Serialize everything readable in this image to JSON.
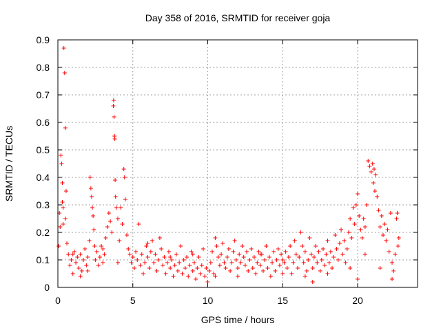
{
  "chart_data": {
    "type": "scatter",
    "title": "Day 358 of 2016, SRMTID for receiver goja",
    "xlabel": "GPS time / hours",
    "ylabel": "SRMTID / TECUs",
    "xlim": [
      0,
      24
    ],
    "ylim": [
      0,
      0.9
    ],
    "xticks": [
      0,
      5,
      10,
      15,
      20
    ],
    "xtick_labels": [
      "0",
      "5",
      "10",
      "15",
      "20"
    ],
    "yticks": [
      0,
      0.1,
      0.2,
      0.3,
      0.4,
      0.5,
      0.6,
      0.7,
      0.8,
      0.9
    ],
    "ytick_labels": [
      "0",
      "0.1",
      "0.2",
      "0.3",
      "0.4",
      "0.5",
      "0.6",
      "0.7",
      "0.8",
      "0.9"
    ],
    "grid": true,
    "marker": "plus",
    "color": "#ff0000",
    "series": [
      {
        "name": "SRMTID",
        "points": [
          [
            0.05,
            0.15
          ],
          [
            0.1,
            0.27
          ],
          [
            0.15,
            0.22
          ],
          [
            0.2,
            0.48
          ],
          [
            0.25,
            0.45
          ],
          [
            0.3,
            0.38
          ],
          [
            0.35,
            0.23
          ],
          [
            0.4,
            0.87
          ],
          [
            0.45,
            0.78
          ],
          [
            0.5,
            0.58
          ],
          [
            0.55,
            0.35
          ],
          [
            0.6,
            0.16
          ],
          [
            0.3,
            0.31
          ],
          [
            0.35,
            0.29
          ],
          [
            0.5,
            0.25
          ],
          [
            0.7,
            0.12
          ],
          [
            0.8,
            0.08
          ],
          [
            0.9,
            0.1
          ],
          [
            1.0,
            0.05
          ],
          [
            1.1,
            0.13
          ],
          [
            1.2,
            0.09
          ],
          [
            1.3,
            0.11
          ],
          [
            1.4,
            0.07
          ],
          [
            1.5,
            0.12
          ],
          [
            1.6,
            0.06
          ],
          [
            1.7,
            0.1
          ],
          [
            1.8,
            0.14
          ],
          [
            1.9,
            0.08
          ],
          [
            2.0,
            0.11
          ],
          [
            2.1,
            0.17
          ],
          [
            2.15,
            0.4
          ],
          [
            2.2,
            0.36
          ],
          [
            2.25,
            0.33
          ],
          [
            2.3,
            0.29
          ],
          [
            2.35,
            0.26
          ],
          [
            2.4,
            0.21
          ],
          [
            2.45,
            0.15
          ],
          [
            2.5,
            0.1
          ],
          [
            2.6,
            0.13
          ],
          [
            2.7,
            0.08
          ],
          [
            2.8,
            0.11
          ],
          [
            2.9,
            0.15
          ],
          [
            3.0,
            0.09
          ],
          [
            3.1,
            0.12
          ],
          [
            3.2,
            0.18
          ],
          [
            3.3,
            0.22
          ],
          [
            3.4,
            0.27
          ],
          [
            3.5,
            0.24
          ],
          [
            3.6,
            0.2
          ],
          [
            3.7,
            0.66
          ],
          [
            3.72,
            0.68
          ],
          [
            3.75,
            0.62
          ],
          [
            3.78,
            0.55
          ],
          [
            3.8,
            0.54
          ],
          [
            3.82,
            0.39
          ],
          [
            3.85,
            0.33
          ],
          [
            3.9,
            0.29
          ],
          [
            4.0,
            0.25
          ],
          [
            4.1,
            0.17
          ],
          [
            4.2,
            0.29
          ],
          [
            4.3,
            0.23
          ],
          [
            4.4,
            0.43
          ],
          [
            4.45,
            0.4
          ],
          [
            4.5,
            0.32
          ],
          [
            4.6,
            0.19
          ],
          [
            4.7,
            0.14
          ],
          [
            4.8,
            0.12
          ],
          [
            4.9,
            0.09
          ],
          [
            5.0,
            0.11
          ],
          [
            5.1,
            0.07
          ],
          [
            5.2,
            0.13
          ],
          [
            5.3,
            0.1
          ],
          [
            5.4,
            0.23
          ],
          [
            5.5,
            0.08
          ],
          [
            5.6,
            0.12
          ],
          [
            5.7,
            0.05
          ],
          [
            5.8,
            0.09
          ],
          [
            5.9,
            0.15
          ],
          [
            6.0,
            0.11
          ],
          [
            6.1,
            0.07
          ],
          [
            6.2,
            0.13
          ],
          [
            6.3,
            0.17
          ],
          [
            6.4,
            0.09
          ],
          [
            6.5,
            0.12
          ],
          [
            6.6,
            0.06
          ],
          [
            6.7,
            0.1
          ],
          [
            6.8,
            0.18
          ],
          [
            6.9,
            0.14
          ],
          [
            7.0,
            0.08
          ],
          [
            7.1,
            0.11
          ],
          [
            7.2,
            0.05
          ],
          [
            7.3,
            0.09
          ],
          [
            7.4,
            0.13
          ],
          [
            7.5,
            0.07
          ],
          [
            7.6,
            0.1
          ],
          [
            7.7,
            0.04
          ],
          [
            7.8,
            0.08
          ],
          [
            7.9,
            0.12
          ],
          [
            8.0,
            0.06
          ],
          [
            8.1,
            0.09
          ],
          [
            8.2,
            0.15
          ],
          [
            8.3,
            0.05
          ],
          [
            8.4,
            0.1
          ],
          [
            8.5,
            0.07
          ],
          [
            8.6,
            0.11
          ],
          [
            8.7,
            0.04
          ],
          [
            8.8,
            0.08
          ],
          [
            8.9,
            0.13
          ],
          [
            9.0,
            0.06
          ],
          [
            9.1,
            0.09
          ],
          [
            9.2,
            0.03
          ],
          [
            9.3,
            0.07
          ],
          [
            9.4,
            0.11
          ],
          [
            9.5,
            0.05
          ],
          [
            9.6,
            0.08
          ],
          [
            9.7,
            0.14
          ],
          [
            9.8,
            0.04
          ],
          [
            9.9,
            0.07
          ],
          [
            10.0,
            0.02
          ],
          [
            10.1,
            0.06
          ],
          [
            10.2,
            0.09
          ],
          [
            10.3,
            0.13
          ],
          [
            10.4,
            0.05
          ],
          [
            10.5,
            0.18
          ],
          [
            10.6,
            0.15
          ],
          [
            10.7,
            0.11
          ],
          [
            10.8,
            0.08
          ],
          [
            10.9,
            0.12
          ],
          [
            11.0,
            0.16
          ],
          [
            11.1,
            0.09
          ],
          [
            11.2,
            0.07
          ],
          [
            11.3,
            0.11
          ],
          [
            11.4,
            0.14
          ],
          [
            11.5,
            0.06
          ],
          [
            11.6,
            0.09
          ],
          [
            11.7,
            0.13
          ],
          [
            11.8,
            0.17
          ],
          [
            11.9,
            0.1
          ],
          [
            12.0,
            0.07
          ],
          [
            12.1,
            0.12
          ],
          [
            12.2,
            0.09
          ],
          [
            12.3,
            0.15
          ],
          [
            12.4,
            0.11
          ],
          [
            12.5,
            0.08
          ],
          [
            12.6,
            0.13
          ],
          [
            12.7,
            0.06
          ],
          [
            12.8,
            0.1
          ],
          [
            12.9,
            0.14
          ],
          [
            13.0,
            0.07
          ],
          [
            13.1,
            0.11
          ],
          [
            13.2,
            0.05
          ],
          [
            13.3,
            0.09
          ],
          [
            13.4,
            0.13
          ],
          [
            13.5,
            0.08
          ],
          [
            13.6,
            0.12
          ],
          [
            13.7,
            0.06
          ],
          [
            13.8,
            0.1
          ],
          [
            13.9,
            0.15
          ],
          [
            14.0,
            0.07
          ],
          [
            14.1,
            0.11
          ],
          [
            14.2,
            0.04
          ],
          [
            14.3,
            0.09
          ],
          [
            14.4,
            0.13
          ],
          [
            14.5,
            0.06
          ],
          [
            14.6,
            0.1
          ],
          [
            14.7,
            0.14
          ],
          [
            14.8,
            0.08
          ],
          [
            14.9,
            0.12
          ],
          [
            15.0,
            0.05
          ],
          [
            15.1,
            0.09
          ],
          [
            15.2,
            0.13
          ],
          [
            15.3,
            0.07
          ],
          [
            15.4,
            0.11
          ],
          [
            15.5,
            0.15
          ],
          [
            15.6,
            0.05
          ],
          [
            15.7,
            0.09
          ],
          [
            15.8,
            0.17
          ],
          [
            15.9,
            0.12
          ],
          [
            16.0,
            0.07
          ],
          [
            16.1,
            0.11
          ],
          [
            16.2,
            0.2
          ],
          [
            16.3,
            0.15
          ],
          [
            16.4,
            0.09
          ],
          [
            16.5,
            0.13
          ],
          [
            16.6,
            0.06
          ],
          [
            16.7,
            0.1
          ],
          [
            16.8,
            0.18
          ],
          [
            16.9,
            0.12
          ],
          [
            17.0,
            0.07
          ],
          [
            17.1,
            0.11
          ],
          [
            17.2,
            0.15
          ],
          [
            17.3,
            0.09
          ],
          [
            17.4,
            0.13
          ],
          [
            17.5,
            0.06
          ],
          [
            17.6,
            0.1
          ],
          [
            17.7,
            0.14
          ],
          [
            17.8,
            0.08
          ],
          [
            17.9,
            0.12
          ],
          [
            18.0,
            0.17
          ],
          [
            18.1,
            0.09
          ],
          [
            18.2,
            0.13
          ],
          [
            18.3,
            0.07
          ],
          [
            18.4,
            0.11
          ],
          [
            18.5,
            0.19
          ],
          [
            18.6,
            0.14
          ],
          [
            18.7,
            0.1
          ],
          [
            18.8,
            0.16
          ],
          [
            18.9,
            0.21
          ],
          [
            19.0,
            0.12
          ],
          [
            19.1,
            0.17
          ],
          [
            19.2,
            0.09
          ],
          [
            19.3,
            0.14
          ],
          [
            19.4,
            0.2
          ],
          [
            19.5,
            0.25
          ],
          [
            19.6,
            0.18
          ],
          [
            19.7,
            0.29
          ],
          [
            19.8,
            0.23
          ],
          [
            19.9,
            0.3
          ],
          [
            20.0,
            0.34
          ],
          [
            20.1,
            0.26
          ],
          [
            20.2,
            0.21
          ],
          [
            20.3,
            0.18
          ],
          [
            20.4,
            0.25
          ],
          [
            20.5,
            0.22
          ],
          [
            20.6,
            0.3
          ],
          [
            20.7,
            0.46
          ],
          [
            20.8,
            0.44
          ],
          [
            20.9,
            0.42
          ],
          [
            21.0,
            0.45
          ],
          [
            21.05,
            0.38
          ],
          [
            21.1,
            0.43
          ],
          [
            21.15,
            0.35
          ],
          [
            21.2,
            0.41
          ],
          [
            21.3,
            0.33
          ],
          [
            21.4,
            0.28
          ],
          [
            21.5,
            0.22
          ],
          [
            21.6,
            0.26
          ],
          [
            21.7,
            0.19
          ],
          [
            21.8,
            0.23
          ],
          [
            21.9,
            0.17
          ],
          [
            22.0,
            0.21
          ],
          [
            22.1,
            0.13
          ],
          [
            22.2,
            0.27
          ],
          [
            22.3,
            0.09
          ],
          [
            22.4,
            0.06
          ],
          [
            22.5,
            0.12
          ],
          [
            22.6,
            0.25
          ],
          [
            22.65,
            0.27
          ],
          [
            22.7,
            0.15
          ],
          [
            22.75,
            0.18
          ],
          [
            1.0,
            0.12
          ],
          [
            1.5,
            0.04
          ],
          [
            2.0,
            0.06
          ],
          [
            3.0,
            0.14
          ],
          [
            4.0,
            0.09
          ],
          [
            6.0,
            0.16
          ],
          [
            7.5,
            0.11
          ],
          [
            9.0,
            0.12
          ],
          [
            10.5,
            0.04
          ],
          [
            12.0,
            0.04
          ],
          [
            13.5,
            0.12
          ],
          [
            15.0,
            0.1
          ],
          [
            16.5,
            0.04
          ],
          [
            18.0,
            0.05
          ],
          [
            19.5,
            0.07
          ],
          [
            20.5,
            0.12
          ],
          [
            21.5,
            0.07
          ],
          [
            22.3,
            0.03
          ],
          [
            20.0,
            0.03
          ],
          [
            17.0,
            0.02
          ]
        ]
      }
    ]
  }
}
